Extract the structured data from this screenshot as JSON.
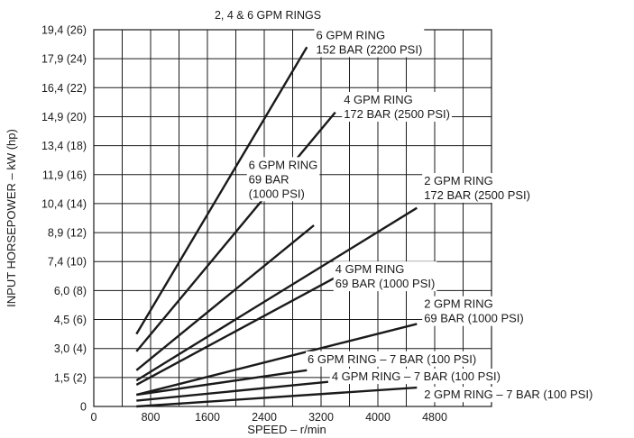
{
  "chart_data": {
    "type": "line",
    "title": "2, 4 & 6 GPM RINGS",
    "xlabel": "SPEED – r/min",
    "ylabel": "INPUT HORSEPOWER – kW (hp)",
    "xlim": [
      0,
      5600
    ],
    "ylim": [
      0,
      26
    ],
    "x_ticks": [
      {
        "value": 0,
        "label": "0"
      },
      {
        "value": 800,
        "label": "800"
      },
      {
        "value": 1600,
        "label": "1600"
      },
      {
        "value": 2400,
        "label": "2400"
      },
      {
        "value": 3200,
        "label": "3200"
      },
      {
        "value": 4000,
        "label": "4000"
      },
      {
        "value": 4800,
        "label": "4800"
      }
    ],
    "y_ticks": [
      {
        "value": 0,
        "label": "0"
      },
      {
        "value": 2,
        "label": "1,5 (2)"
      },
      {
        "value": 4,
        "label": "3,0 (4)"
      },
      {
        "value": 6,
        "label": "4,5 (6)"
      },
      {
        "value": 8,
        "label": "6,0 (8)"
      },
      {
        "value": 10,
        "label": "7,4 (10)"
      },
      {
        "value": 12,
        "label": "8,9 (12)"
      },
      {
        "value": 14,
        "label": "10,4 (14)"
      },
      {
        "value": 16,
        "label": "11,9 (16)"
      },
      {
        "value": 18,
        "label": "13,4 (18)"
      },
      {
        "value": 20,
        "label": "14,9 (20)"
      },
      {
        "value": 22,
        "label": "16,4 (22)"
      },
      {
        "value": 24,
        "label": "17,9 (24)"
      },
      {
        "value": 26,
        "label": "19,4 (26)"
      }
    ],
    "grid": true,
    "series": [
      {
        "name": "6 GPM RING 152 BAR (2200 PSI)",
        "x": [
          600,
          3000
        ],
        "y": [
          5.0,
          24.8
        ]
      },
      {
        "name": "4 GPM RING 172 BAR (2500 PSI)",
        "x": [
          600,
          3400
        ],
        "y": [
          3.8,
          20.3
        ]
      },
      {
        "name": "6 GPM RING 69 BAR (1000 PSI)",
        "x": [
          600,
          3100
        ],
        "y": [
          2.5,
          12.5
        ]
      },
      {
        "name": "2 GPM RING 172 BAR (2500 PSI)",
        "x": [
          600,
          4550
        ],
        "y": [
          1.8,
          13.7
        ]
      },
      {
        "name": "4 GPM RING 69 BAR (1000 PSI)",
        "x": [
          600,
          3400
        ],
        "y": [
          1.5,
          8.9
        ]
      },
      {
        "name": "2 GPM RING 69 BAR (1000 PSI)",
        "x": [
          600,
          4550
        ],
        "y": [
          0.8,
          5.7
        ]
      },
      {
        "name": "6 GPM RING – 7 BAR (100 PSI)",
        "x": [
          600,
          3000
        ],
        "y": [
          0.8,
          2.5
        ]
      },
      {
        "name": "4 GPM RING – 7 BAR (100 PSI)",
        "x": [
          600,
          3300
        ],
        "y": [
          0.4,
          1.7
        ]
      },
      {
        "name": "2 GPM RING – 7 BAR (100 PSI)",
        "x": [
          600,
          4550
        ],
        "y": [
          0.0,
          1.3
        ]
      }
    ],
    "annotations": [
      {
        "lines": [
          "6 GPM RING",
          "152 BAR (2200 PSI)"
        ],
        "x": 3130,
        "y": 25.35
      },
      {
        "lines": [
          "4 GPM RING",
          "172 BAR (2500 PSI)"
        ],
        "x": 3520,
        "y": 20.9
      },
      {
        "lines": [
          "6 GPM RING",
          "69 BAR",
          "(1000 PSI)"
        ],
        "x": 2180,
        "y": 16.4
      },
      {
        "lines": [
          "2 GPM RING",
          "172 BAR (2500 PSI)"
        ],
        "x": 4650,
        "y": 15.3
      },
      {
        "lines": [
          "4 GPM RING",
          "69 BAR (1000 PSI)"
        ],
        "x": 3400,
        "y": 9.2
      },
      {
        "lines": [
          "2 GPM RING",
          "69 BAR (1000 PSI)"
        ],
        "x": 4650,
        "y": 6.8
      },
      {
        "lines": [
          "6 GPM RING – 7 BAR (100 PSI)"
        ],
        "x": 3010,
        "y": 3.0
      },
      {
        "lines": [
          "4 GPM RING – 7 BAR (100 PSI)"
        ],
        "x": 3350,
        "y": 1.8
      },
      {
        "lines": [
          "2 GPM RING – 7 BAR (100 PSI)"
        ],
        "x": 4650,
        "y": 0.55
      }
    ]
  }
}
